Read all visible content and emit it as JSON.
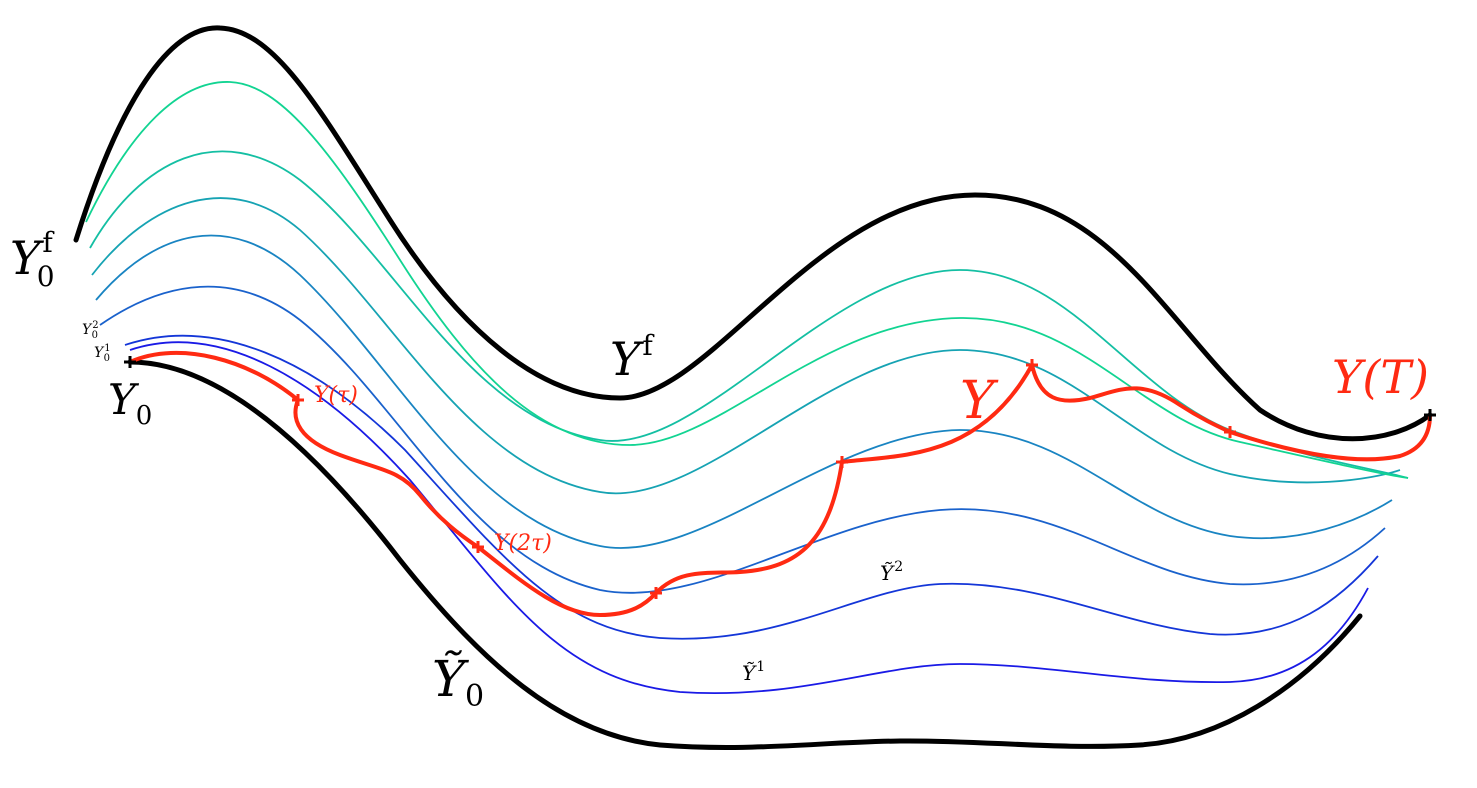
{
  "colors": {
    "boundary": "#000000",
    "trajectory": "#ff2a12",
    "family": [
      "#1a1ae6",
      "#1436d8",
      "#1a62cc",
      "#1984c2",
      "#16a3b3",
      "#14bfa3",
      "#12d492"
    ]
  },
  "labels": {
    "y0f": {
      "base": "Y",
      "sub": "0",
      "sup": "f"
    },
    "yf": {
      "base": "Y",
      "sup": "f"
    },
    "y0": {
      "base": "Y",
      "sub": "0"
    },
    "y0_2": {
      "base": "Y",
      "sub": "0",
      "sup": "2"
    },
    "y0_1": {
      "base": "Y",
      "sub": "0",
      "sup": "1"
    },
    "ytilde0": {
      "base": "Ỹ",
      "sub": "0"
    },
    "ytilde1": {
      "base": "Ỹ",
      "sup": "1"
    },
    "ytilde2": {
      "base": "Ỹ",
      "sup": "2"
    },
    "y": {
      "base": "Y"
    },
    "yT": {
      "text": "Y(T)"
    },
    "ytau": {
      "text": "Y(τ)"
    },
    "y2tau": {
      "text": "Y(2τ)"
    }
  }
}
